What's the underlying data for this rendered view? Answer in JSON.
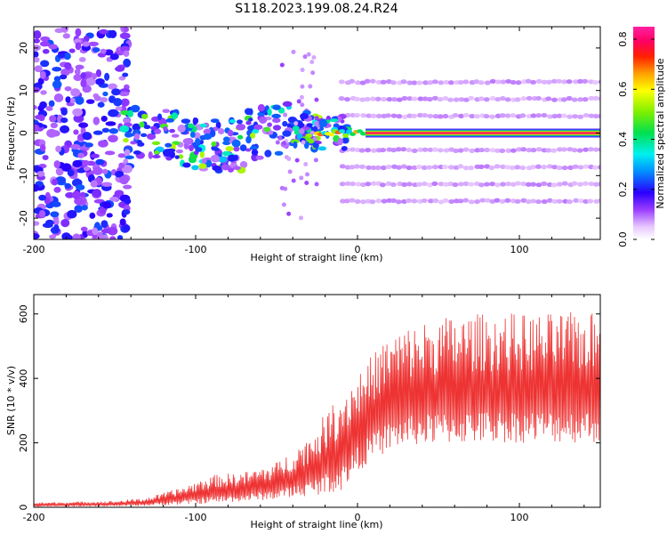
{
  "title": "S118.2023.199.08.24.R24",
  "colors": {
    "snr_line": "#ee3333",
    "axis": "#000000",
    "plot_bg": "#ffffff"
  },
  "chart_data": [
    {
      "type": "heatmap",
      "xlabel": "Height of straight line (km)",
      "ylabel": "Frequency (Hz)",
      "xlim": [
        -200,
        150
      ],
      "ylim": [
        -25,
        25
      ],
      "x_ticks": [
        -200,
        -100,
        0,
        100
      ],
      "x_tick_labels": [
        "-200",
        "-100",
        "0",
        "100"
      ],
      "y_ticks": [
        -20,
        -10,
        0,
        10,
        20
      ],
      "y_tick_labels": [
        "-20",
        "-10",
        "0",
        "10",
        "20"
      ],
      "colorbar": {
        "label": "Normalized spectral amplitude",
        "range": [
          0.0,
          0.85
        ],
        "ticks": [
          0.0,
          0.2,
          0.4,
          0.6,
          0.8
        ],
        "tick_labels": [
          "0.0",
          "0.2",
          "0.4",
          "0.6",
          "0.8"
        ]
      },
      "features": {
        "carrier_line_start_km": 5,
        "carrier_frequency_hz": 0,
        "carrier_amplitude": 0.8,
        "harmonic_lines_hz": [
          -16,
          -12,
          -8,
          -4,
          4,
          8,
          12
        ],
        "harmonic_amplitude": 0.05,
        "scatter_region_km": [
          -200,
          -150
        ],
        "cluster_region_km": [
          -145,
          -5
        ]
      }
    },
    {
      "type": "line",
      "xlabel": "Height of straight line (km)",
      "ylabel": "SNR (10 * v/v)",
      "xlim": [
        -200,
        150
      ],
      "ylim": [
        0,
        660
      ],
      "x_ticks": [
        -200,
        -100,
        0,
        100
      ],
      "x_tick_labels": [
        "-200",
        "-100",
        "0",
        "100"
      ],
      "y_ticks": [
        0,
        200,
        400,
        600
      ],
      "y_tick_labels": [
        "0",
        "200",
        "400",
        "600"
      ],
      "series": [
        {
          "name": "SNR",
          "x": [
            -200,
            -150,
            -130,
            -110,
            -90,
            -70,
            -50,
            -30,
            -10,
            0,
            10,
            20,
            30,
            50,
            70,
            90,
            110,
            130,
            150
          ],
          "lower": [
            2,
            3,
            5,
            8,
            12,
            18,
            25,
            35,
            50,
            110,
            150,
            175,
            190,
            195,
            198,
            200,
            200,
            200,
            200
          ],
          "upper": [
            15,
            20,
            30,
            60,
            100,
            110,
            140,
            220,
            360,
            420,
            480,
            540,
            560,
            590,
            600,
            605,
            600,
            605,
            605
          ]
        }
      ]
    }
  ]
}
